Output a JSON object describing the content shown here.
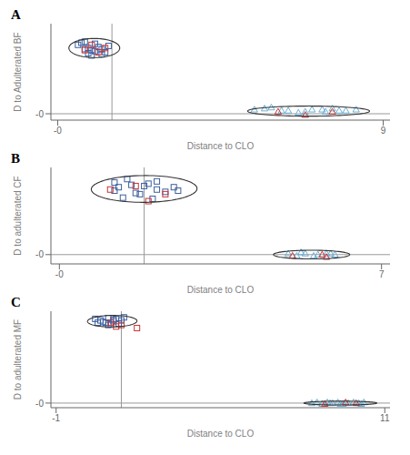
{
  "chart_data": [
    {
      "type": "scatter",
      "title": "A",
      "xlabel": "Distance to CLO",
      "ylabel": "D to Adulterated BF",
      "xlim": [
        -0.5,
        9.5
      ],
      "ylim": [
        -0.6,
        8.5
      ],
      "xticks": [
        {
          "value": -0.3,
          "label": "-0"
        },
        {
          "value": 9.3,
          "label": "9"
        }
      ],
      "yticks": [
        {
          "value": 0,
          "label": "-0"
        }
      ],
      "reference_lines": [
        {
          "axis": "x",
          "value": 1.3,
          "color": "#999999"
        },
        {
          "axis": "y",
          "value": 0.0,
          "color": "#999999"
        }
      ],
      "ellipses": [
        {
          "cx": 0.78,
          "cy": 6.2,
          "width": 1.5,
          "height": 1.8,
          "angle": 0,
          "color": "#333333"
        },
        {
          "cx": 7.1,
          "cy": 0.25,
          "width": 3.6,
          "height": 0.95,
          "angle": 0,
          "color": "#333333"
        }
      ],
      "series": [
        {
          "marker": "square",
          "color": "#3a5fa0",
          "points": [
            [
              0.3,
              6.5
            ],
            [
              0.5,
              6.8
            ],
            [
              0.6,
              6.2
            ],
            [
              0.7,
              6.0
            ],
            [
              0.8,
              5.9
            ],
            [
              0.9,
              6.3
            ],
            [
              1.0,
              6.1
            ],
            [
              1.1,
              5.8
            ],
            [
              1.2,
              6.4
            ],
            [
              0.4,
              6.7
            ],
            [
              0.6,
              5.7
            ],
            [
              0.8,
              6.6
            ],
            [
              1.0,
              5.6
            ],
            [
              0.5,
              6.1
            ],
            [
              0.7,
              5.5
            ]
          ]
        },
        {
          "marker": "square",
          "color": "#cc3333",
          "points": [
            [
              0.5,
              6.0
            ],
            [
              0.9,
              5.8
            ],
            [
              0.7,
              6.5
            ],
            [
              1.1,
              6.2
            ]
          ]
        },
        {
          "marker": "triangle",
          "color": "#6ab0d8",
          "points": [
            [
              5.5,
              0.4
            ],
            [
              6.0,
              0.6
            ],
            [
              6.5,
              0.3
            ],
            [
              7.0,
              0.2
            ],
            [
              7.5,
              0.4
            ],
            [
              7.8,
              0.5
            ],
            [
              8.0,
              0.3
            ],
            [
              6.8,
              0.1
            ],
            [
              7.2,
              0.4
            ],
            [
              6.3,
              0.3
            ],
            [
              5.8,
              0.5
            ],
            [
              7.6,
              0.2
            ],
            [
              8.2,
              0.3
            ],
            [
              8.5,
              0.4
            ]
          ]
        },
        {
          "marker": "triangle",
          "color": "#cc3333",
          "points": [
            [
              6.2,
              0.2
            ],
            [
              7.0,
              -0.1
            ],
            [
              7.8,
              0.2
            ]
          ]
        }
      ]
    },
    {
      "type": "scatter",
      "title": "B",
      "xlabel": "Distance to CLO",
      "ylabel": "D to adulterated CF",
      "xlim": [
        -0.5,
        7.5
      ],
      "ylim": [
        -0.8,
        7.5
      ],
      "xticks": [
        {
          "value": -0.3,
          "label": "-0"
        },
        {
          "value": 7.3,
          "label": "7"
        }
      ],
      "yticks": [
        {
          "value": 0,
          "label": "-0"
        }
      ],
      "reference_lines": [
        {
          "axis": "x",
          "value": 1.7,
          "color": "#999999"
        },
        {
          "axis": "y",
          "value": 0.0,
          "color": "#999999"
        }
      ],
      "ellipses": [
        {
          "cx": 1.7,
          "cy": 5.65,
          "width": 2.5,
          "height": 2.3,
          "angle": 10,
          "color": "#333333"
        },
        {
          "cx": 5.65,
          "cy": 0.0,
          "width": 1.8,
          "height": 0.75,
          "angle": 0,
          "color": "#333333"
        }
      ],
      "series": [
        {
          "marker": "square",
          "color": "#3a5fa0",
          "points": [
            [
              1.0,
              6.2
            ],
            [
              1.1,
              5.8
            ],
            [
              1.3,
              6.5
            ],
            [
              1.5,
              5.3
            ],
            [
              1.7,
              5.9
            ],
            [
              1.8,
              6.1
            ],
            [
              2.0,
              5.6
            ],
            [
              2.2,
              5.4
            ],
            [
              2.4,
              5.8
            ],
            [
              2.5,
              5.5
            ],
            [
              1.2,
              4.9
            ],
            [
              1.6,
              5.2
            ],
            [
              1.9,
              4.8
            ],
            [
              1.4,
              6.0
            ],
            [
              2.0,
              6.3
            ],
            [
              1.0,
              5.5
            ]
          ]
        },
        {
          "marker": "square",
          "color": "#cc3333",
          "points": [
            [
              0.9,
              5.6
            ],
            [
              1.5,
              5.9
            ],
            [
              1.8,
              4.6
            ],
            [
              2.2,
              5.2
            ]
          ]
        },
        {
          "marker": "triangle",
          "color": "#6ab0d8",
          "points": [
            [
              5.1,
              0.1
            ],
            [
              5.3,
              -0.1
            ],
            [
              5.5,
              0.1
            ],
            [
              5.8,
              0.0
            ],
            [
              6.0,
              0.1
            ],
            [
              6.2,
              0.0
            ],
            [
              5.4,
              0.2
            ],
            [
              5.7,
              -0.1
            ],
            [
              6.1,
              0.1
            ]
          ]
        },
        {
          "marker": "triangle",
          "color": "#cc3333",
          "points": [
            [
              5.2,
              -0.1
            ],
            [
              5.9,
              0.0
            ],
            [
              6.0,
              -0.2
            ]
          ]
        }
      ]
    },
    {
      "type": "scatter",
      "title": "C",
      "xlabel": "Distance to CLO",
      "ylabel": "D to adulterated MF",
      "xlim": [
        -1.5,
        11.5
      ],
      "ylim": [
        -0.6,
        12.0
      ],
      "xticks": [
        {
          "value": -1.3,
          "label": "-1"
        },
        {
          "value": 11.3,
          "label": "11"
        }
      ],
      "yticks": [
        {
          "value": 0,
          "label": "-0"
        }
      ],
      "reference_lines": [
        {
          "axis": "x",
          "value": 1.2,
          "color": "#999999"
        },
        {
          "axis": "y",
          "value": 0.0,
          "color": "#999999"
        }
      ],
      "ellipses": [
        {
          "cx": 0.85,
          "cy": 10.7,
          "width": 1.9,
          "height": 1.5,
          "angle": 5,
          "color": "#333333"
        },
        {
          "cx": 9.6,
          "cy": 0.0,
          "width": 2.8,
          "height": 0.5,
          "angle": 0,
          "color": "#333333"
        }
      ],
      "series": [
        {
          "marker": "square",
          "color": "#3a5fa0",
          "points": [
            [
              0.2,
              11.0
            ],
            [
              0.4,
              10.8
            ],
            [
              0.6,
              10.5
            ],
            [
              0.7,
              11.1
            ],
            [
              0.8,
              10.3
            ],
            [
              0.9,
              10.7
            ],
            [
              1.0,
              11.0
            ],
            [
              1.1,
              10.4
            ],
            [
              1.2,
              10.8
            ],
            [
              1.3,
              11.2
            ],
            [
              0.5,
              10.6
            ],
            [
              0.7,
              10.2
            ],
            [
              0.9,
              10.9
            ],
            [
              0.3,
              10.5
            ]
          ]
        },
        {
          "marker": "square",
          "color": "#cc3333",
          "points": [
            [
              0.8,
              10.5
            ],
            [
              1.2,
              10.2
            ],
            [
              1.8,
              9.8
            ],
            [
              1.0,
              10.0
            ]
          ]
        },
        {
          "marker": "triangle",
          "color": "#6ab0d8",
          "points": [
            [
              8.5,
              0.0
            ],
            [
              8.7,
              0.1
            ],
            [
              8.9,
              -0.1
            ],
            [
              9.1,
              0.1
            ],
            [
              9.3,
              0.0
            ],
            [
              9.5,
              0.1
            ],
            [
              9.7,
              -0.1
            ],
            [
              9.9,
              0.0
            ],
            [
              10.1,
              0.1
            ],
            [
              10.3,
              0.0
            ],
            [
              10.4,
              -0.1
            ],
            [
              10.5,
              0.1
            ],
            [
              9.6,
              -0.1
            ],
            [
              9.2,
              0.0
            ]
          ]
        },
        {
          "marker": "triangle",
          "color": "#cc3333",
          "points": [
            [
              9.0,
              -0.1
            ],
            [
              9.8,
              0.1
            ],
            [
              10.2,
              0.0
            ]
          ]
        }
      ]
    }
  ]
}
